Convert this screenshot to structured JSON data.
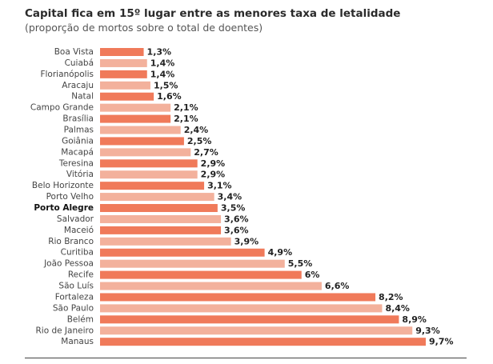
{
  "chart_data": {
    "type": "bar",
    "orientation": "horizontal",
    "title": "Capital fica em 15º lugar entre as menores taxa de letalidade",
    "subtitle": "(proporção de mortos sobre o total de doentes)",
    "unit": "%",
    "highlight": "Porto Alegre",
    "colors": {
      "dark": "#f07a5a",
      "light": "#f3b19c"
    },
    "xlim": [
      0,
      9.7
    ],
    "categories": [
      "Boa Vista",
      "Cuiabá",
      "Florianópolis",
      "Aracaju",
      "Natal",
      "Campo Grande",
      "Brasília",
      "Palmas",
      "Goiânia",
      "Macapá",
      "Teresina",
      "Vitória",
      "Belo Horizonte",
      "Porto Velho",
      "Porto Alegre",
      "Salvador",
      "Maceió",
      "Rio Branco",
      "Curitiba",
      "João Pessoa",
      "Recife",
      "São Luís",
      "Fortaleza",
      "São Paulo",
      "Belém",
      "Rio de Janeiro",
      "Manaus"
    ],
    "values": [
      1.3,
      1.4,
      1.4,
      1.5,
      1.6,
      2.1,
      2.1,
      2.4,
      2.5,
      2.7,
      2.9,
      2.9,
      3.1,
      3.4,
      3.5,
      3.6,
      3.6,
      3.9,
      4.9,
      5.5,
      6,
      6.6,
      8.2,
      8.4,
      8.9,
      9.3,
      9.7
    ],
    "value_labels": [
      "1,3%",
      "1,4%",
      "1,4%",
      "1,5%",
      "1,6%",
      "2,1%",
      "2,1%",
      "2,4%",
      "2,5%",
      "2,7%",
      "2,9%",
      "2,9%",
      "3,1%",
      "3,4%",
      "3,5%",
      "3,6%",
      "3,6%",
      "3,9%",
      "4,9%",
      "5,5%",
      "6%",
      "6,6%",
      "8,2%",
      "8,4%",
      "8,9%",
      "9,3%",
      "9,7%"
    ]
  }
}
